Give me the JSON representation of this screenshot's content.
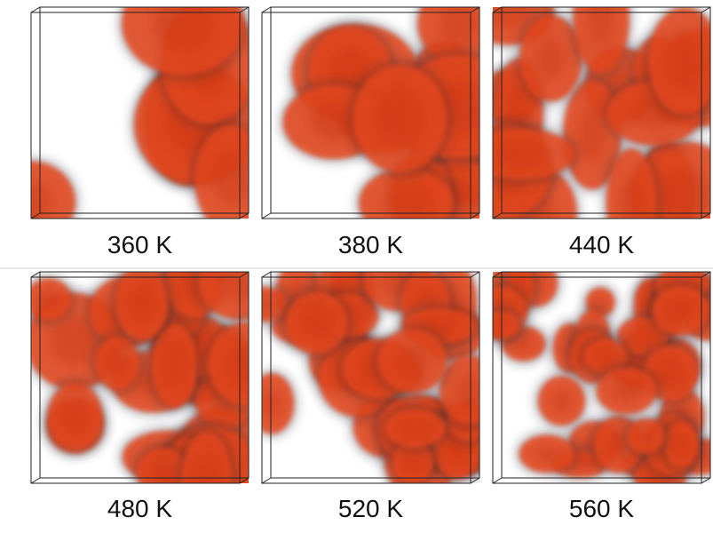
{
  "panels": [
    {
      "label": "360 K"
    },
    {
      "label": "380 K"
    },
    {
      "label": "440 K"
    },
    {
      "label": "480 K"
    },
    {
      "label": "520 K"
    },
    {
      "label": "560 K"
    }
  ]
}
